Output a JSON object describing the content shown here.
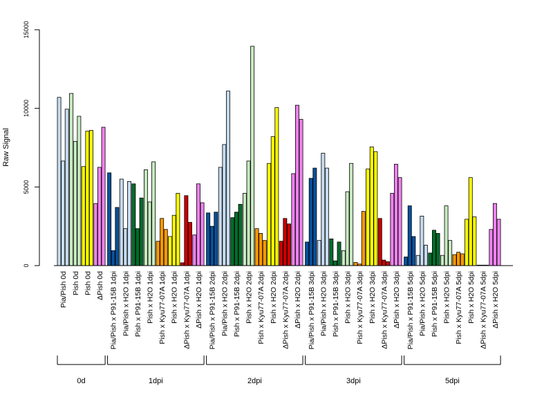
{
  "chart_data": {
    "type": "bar",
    "ylabel": "Raw Signal",
    "xlabel": "",
    "ylim": [
      0,
      15000
    ],
    "yticks": [
      0,
      5000,
      10000,
      15000
    ],
    "series_colors": {
      "pia_pish": "#c6dbef",
      "pish": "#c7e9c0",
      "pish_kyu": "#ffff00",
      "dpish": "#ee82ee",
      "p91": "#08519c",
      "pia_h2o": "#deebf7",
      "pish_p91": "#006d2c",
      "pish_h2o": "#e5f5e0",
      "kyu_orange": "#ff9900",
      "kyu_red": "#cc0000",
      "dpish_h2o": "#ee82ee"
    },
    "groups": [
      {
        "label": "0d",
        "categories": [
          {
            "label": "Pia/Pish 0d",
            "color": "#c6dbef",
            "values": [
              10700,
              6650,
              9950
            ]
          },
          {
            "label": "Pish 0d",
            "color": "#c7e9c0",
            "values": [
              10950,
              7900,
              9500
            ]
          },
          {
            "label": "Pish 0d",
            "color": "#ffff00",
            "values": [
              6300,
              8550,
              8600
            ]
          },
          {
            "label": "ΔPish 0d",
            "color": "#ee82ee",
            "values": [
              3950,
              6250,
              8800
            ]
          }
        ]
      },
      {
        "label": "1dpi",
        "categories": [
          {
            "label": "Pia/Pish x P91-15B 1dpi",
            "color": "#08519c",
            "values": [
              5900,
              950,
              3700
            ]
          },
          {
            "label": "Pia/Pish x H2O 1dpi",
            "color": "#c6dbef",
            "values": [
              5500,
              2350,
              5350
            ]
          },
          {
            "label": "Pish x P91-15B 1dpi",
            "color": "#006d2c",
            "values": [
              5200,
              2350,
              4300
            ]
          },
          {
            "label": "Pish x H2O 1dpi",
            "color": "#c7e9c0",
            "values": [
              6100,
              4050,
              6600
            ]
          },
          {
            "label": "Pish x Kyu77-07A 1dpi",
            "color": "#ff9900",
            "values": [
              1550,
              3000,
              2300
            ]
          },
          {
            "label": "Pish x H2O 1dpi",
            "color": "#ffff00",
            "values": [
              1850,
              3200,
              4600
            ]
          },
          {
            "label": "ΔPish x Kyu77-07A 1dpi",
            "color": "#cc0000",
            "values": [
              180,
              4450,
              2750
            ]
          },
          {
            "label": "ΔPish x H2O 1dpi",
            "color": "#ee82ee",
            "values": [
              1950,
              5200,
              4000
            ]
          }
        ]
      },
      {
        "label": "2dpi",
        "categories": [
          {
            "label": "Pia/Pish x P91-15B 2dpi",
            "color": "#08519c",
            "values": [
              3350,
              2500,
              3400
            ]
          },
          {
            "label": "Pia/Pish x H2O 2dpi",
            "color": "#c6dbef",
            "values": [
              6250,
              7700,
              11100
            ]
          },
          {
            "label": "Pish x P91-15B 2dpi",
            "color": "#006d2c",
            "values": [
              3050,
              3400,
              3900
            ]
          },
          {
            "label": "Pish x H2O 2dpi",
            "color": "#c7e9c0",
            "values": [
              4600,
              6650,
              13950
            ]
          },
          {
            "label": "Pish x Kyu77-07A 2dpi",
            "color": "#ff9900",
            "values": [
              2350,
              2050,
              1600
            ]
          },
          {
            "label": "Pish x H2O 2dpi",
            "color": "#ffff00",
            "values": [
              6500,
              8200,
              10050
            ]
          },
          {
            "label": "ΔPish x Kyu77-07A 2dpi",
            "color": "#cc0000",
            "values": [
              1550,
              3000,
              2650
            ]
          },
          {
            "label": "ΔPish x H2O 2dpi",
            "color": "#ee82ee",
            "values": [
              5850,
              10200,
              9300
            ]
          }
        ]
      },
      {
        "label": "3dpi",
        "categories": [
          {
            "label": "Pia/Pish x P91-15B 3dpi",
            "color": "#08519c",
            "values": [
              1500,
              5550,
              6200
            ]
          },
          {
            "label": "Pia/Pish x H2O 3dpi",
            "color": "#c6dbef",
            "values": [
              1600,
              7150,
              6200
            ]
          },
          {
            "label": "Pish x P91-15B 3dpi",
            "color": "#006d2c",
            "values": [
              1700,
              300,
              1500
            ]
          },
          {
            "label": "Pish x H2O 3dpi",
            "color": "#c7e9c0",
            "values": [
              950,
              4700,
              6500
            ]
          },
          {
            "label": "Pish x Kyu77-07A 3dpi",
            "color": "#ff9900",
            "values": [
              200,
              100,
              3450
            ]
          },
          {
            "label": "Pish x H2O 3dpi",
            "color": "#ffff00",
            "values": [
              6150,
              7550,
              7250
            ]
          },
          {
            "label": "ΔPish x Kyu77-07A 3dpi",
            "color": "#cc0000",
            "values": [
              3000,
              350,
              250
            ]
          },
          {
            "label": "ΔPish x H2O 3dpi",
            "color": "#ee82ee",
            "values": [
              4600,
              6450,
              5600
            ]
          }
        ]
      },
      {
        "label": "5dpi",
        "categories": [
          {
            "label": "Pia/Pish x P91-15B 5dpi",
            "color": "#08519c",
            "values": [
              550,
              3800,
              1850
            ]
          },
          {
            "label": "Pia/Pish x H2O 5dpi",
            "color": "#c6dbef",
            "values": [
              650,
              3150,
              1300
            ]
          },
          {
            "label": "Pish x P91-15B 5dpi",
            "color": "#006d2c",
            "values": [
              800,
              2250,
              2050
            ]
          },
          {
            "label": "Pish x H2O 5dpi",
            "color": "#c7e9c0",
            "values": [
              650,
              3800,
              1600
            ]
          },
          {
            "label": "Pish x Kyu77-07A 5dpi",
            "color": "#ff9900",
            "values": [
              700,
              850,
              750
            ]
          },
          {
            "label": "Pish x H2O 5dpi",
            "color": "#ffff00",
            "values": [
              2950,
              5600,
              3100
            ]
          },
          {
            "label": "ΔPish x Kyu77-07A 5dpi",
            "color": "#cc0000",
            "values": [
              30,
              30,
              30
            ]
          },
          {
            "label": "ΔPish x H2O 5dpi",
            "color": "#ee82ee",
            "values": [
              2300,
              3950,
              2950
            ]
          }
        ]
      }
    ]
  }
}
